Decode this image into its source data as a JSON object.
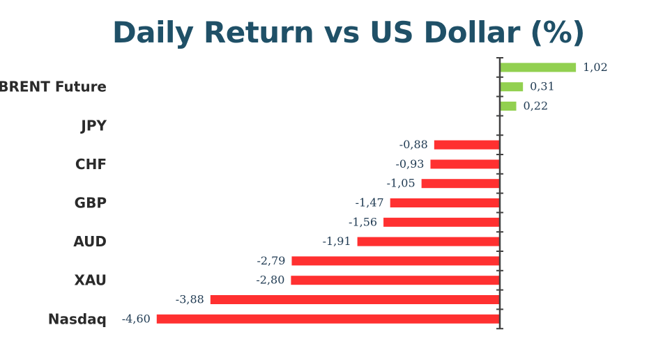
{
  "colors": {
    "title": "#1f5067",
    "positive": "#92d050",
    "negative": "#ff3030",
    "axis": "#404040",
    "category_text": "#2a2a2a",
    "value_text": "#1f3a52"
  },
  "chart_data": {
    "type": "bar",
    "orientation": "horizontal",
    "title": "Daily Return vs US Dollar (%)",
    "xlabel": "",
    "ylabel": "",
    "grid": false,
    "legend": "none",
    "categories": [
      "",
      "BRENT Future",
      "",
      "JPY",
      "",
      "CHF",
      "",
      "GBP",
      "",
      "AUD",
      "",
      "XAU",
      "",
      "Nasdaq"
    ],
    "values": [
      1.02,
      0.31,
      0.22,
      null,
      -0.88,
      -0.93,
      -1.05,
      -1.47,
      -1.56,
      -1.91,
      -2.79,
      -2.8,
      -3.88,
      -4.6
    ],
    "value_labels": [
      "1,02",
      "0,31",
      "0,22",
      "",
      "-0,88",
      "-0,93",
      "-1,05",
      "-1,47",
      "-1,56",
      "-1,91",
      "-2,79",
      "-2,80",
      "-3,88",
      "-4,60"
    ],
    "xlim": [
      -4.6,
      1.02
    ]
  }
}
